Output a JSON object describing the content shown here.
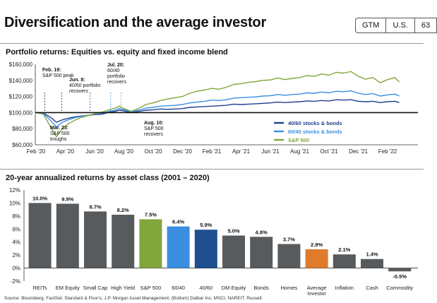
{
  "header": {
    "title": "Diversification and the average investor",
    "tags": [
      "GTM",
      "U.S.",
      "63"
    ]
  },
  "chart_data": [
    {
      "type": "line",
      "title": "Portfolio returns: Equities vs. equity and fixed income blend",
      "x_ticks": [
        "Feb '20",
        "Apr '20",
        "Jun '20",
        "Aug '20",
        "Oct '20",
        "Dec '20",
        "Feb '21",
        "Apr '21",
        "Jun '21",
        "Aug '21",
        "Oct '21",
        "Dec '21",
        "Feb '22"
      ],
      "y_ticks": [
        "$60,000",
        "$80,000",
        "$100,000",
        "$120,000",
        "$140,000",
        "$160,000"
      ],
      "ylim": [
        60000,
        160000
      ],
      "baseline": 100000,
      "x_months": [
        0,
        0.5,
        1.0,
        1.4,
        1.8,
        2.2,
        2.6,
        3.0,
        3.5,
        4.0,
        4.5,
        5.0,
        5.4,
        5.7,
        6.0,
        6.5,
        7.0,
        7.5,
        8.0,
        8.5,
        9.0,
        9.5,
        10.0,
        10.5,
        11.0,
        11.5,
        12.0,
        12.5,
        13.0,
        13.5,
        14.0,
        14.5,
        15.0,
        15.5,
        16.0,
        16.5,
        17.0,
        17.5,
        18.0,
        18.5,
        19.0,
        19.5,
        20.0,
        20.5,
        21.0,
        21.5,
        22.0,
        22.5,
        23.0,
        23.5,
        24.0,
        24.5,
        24.8
      ],
      "series": [
        {
          "name": "40/60 stocks & bonds",
          "color": "#1f3f8f",
          "values": [
            100000,
            99500,
            94000,
            88000,
            91000,
            93000,
            94500,
            95500,
            96500,
            97500,
            98000,
            100500,
            101500,
            103000,
            102000,
            100000,
            101500,
            103000,
            103500,
            104500,
            104000,
            104500,
            105000,
            106500,
            107000,
            107500,
            108000,
            108500,
            109000,
            110500,
            110000,
            110500,
            111000,
            111500,
            112000,
            113000,
            112500,
            113000,
            113500,
            114500,
            114000,
            115000,
            114500,
            116000,
            115500,
            116000,
            114000,
            113500,
            114000,
            112500,
            113500,
            114000,
            112500
          ]
        },
        {
          "name": "60/40 stocks & bonds",
          "color": "#3b8fe0",
          "values": [
            100000,
            99000,
            90000,
            82000,
            88000,
            91000,
            93500,
            95000,
            96500,
            98000,
            99000,
            101500,
            103000,
            105000,
            103500,
            101000,
            103000,
            105500,
            106500,
            108000,
            108500,
            109000,
            110000,
            112000,
            113000,
            114000,
            115500,
            115000,
            116000,
            118000,
            118500,
            119000,
            119500,
            120500,
            121000,
            122500,
            121500,
            122500,
            123000,
            124500,
            124000,
            125500,
            124500,
            126500,
            126000,
            127000,
            124000,
            122500,
            123500,
            120500,
            122000,
            123000,
            120500
          ]
        },
        {
          "name": "S&P 500",
          "color": "#82a53c",
          "values": [
            100000,
            98000,
            82000,
            70000,
            80000,
            86000,
            90000,
            93500,
            96000,
            98500,
            100500,
            103500,
            105500,
            108000,
            105000,
            101500,
            105000,
            110000,
            112000,
            115000,
            117000,
            118500,
            120000,
            124000,
            126500,
            128000,
            130000,
            129000,
            131500,
            135000,
            136000,
            137500,
            138500,
            140000,
            140500,
            143000,
            141000,
            142500,
            143500,
            146000,
            145000,
            148000,
            146500,
            150000,
            149000,
            151000,
            145000,
            141500,
            143500,
            137000,
            141000,
            143500,
            138000
          ]
        }
      ],
      "annotations": [
        {
          "date": "Feb. 19",
          "text": "S&P 500 peak"
        },
        {
          "date": "Mar. 23",
          "text": "S&P 500 troughs"
        },
        {
          "date": "Jun. 8",
          "text": "40/60 portfolio recovers"
        },
        {
          "date": "Jul. 20",
          "text": "60/40 portfolio recovers"
        },
        {
          "date": "Aug. 10",
          "text": "S&P 500 recovers"
        }
      ]
    },
    {
      "type": "bar",
      "title": "20-year annualized returns by asset class (2001 – 2020)",
      "categories": [
        "REITs",
        "EM Equity",
        "Small Cap",
        "High Yield",
        "S&P 500",
        "60/40",
        "40/60",
        "DM Equity",
        "Bonds",
        "Homes",
        "Average Investor",
        "Inflation",
        "Cash",
        "Commodity"
      ],
      "values": [
        10.0,
        9.9,
        8.7,
        8.2,
        7.5,
        6.4,
        5.9,
        5.0,
        4.8,
        3.7,
        2.9,
        2.1,
        1.4,
        -0.5
      ],
      "value_labels": [
        "10.0%",
        "9.9%",
        "8.7%",
        "8.2%",
        "7.5%",
        "6.4%",
        "5.9%",
        "5.0%",
        "4.8%",
        "3.7%",
        "2.9%",
        "2.1%",
        "1.4%",
        "-0.5%"
      ],
      "colors": [
        "#585b5e",
        "#585b5e",
        "#585b5e",
        "#585b5e",
        "#82a53c",
        "#3b8fe0",
        "#1f4f8f",
        "#585b5e",
        "#585b5e",
        "#585b5e",
        "#e07b2c",
        "#585b5e",
        "#585b5e",
        "#585b5e"
      ],
      "y_ticks": [
        "-2%",
        "0%",
        "2%",
        "4%",
        "6%",
        "8%",
        "10%",
        "12%"
      ],
      "ylim": [
        -2,
        12
      ]
    }
  ],
  "source": "Source: Bloomberg, FactSet, Standard & Poor's, J.P. Morgan Asset Management; (Bottom) Dalbar Inc, MSCI, NAREIT, Russell."
}
